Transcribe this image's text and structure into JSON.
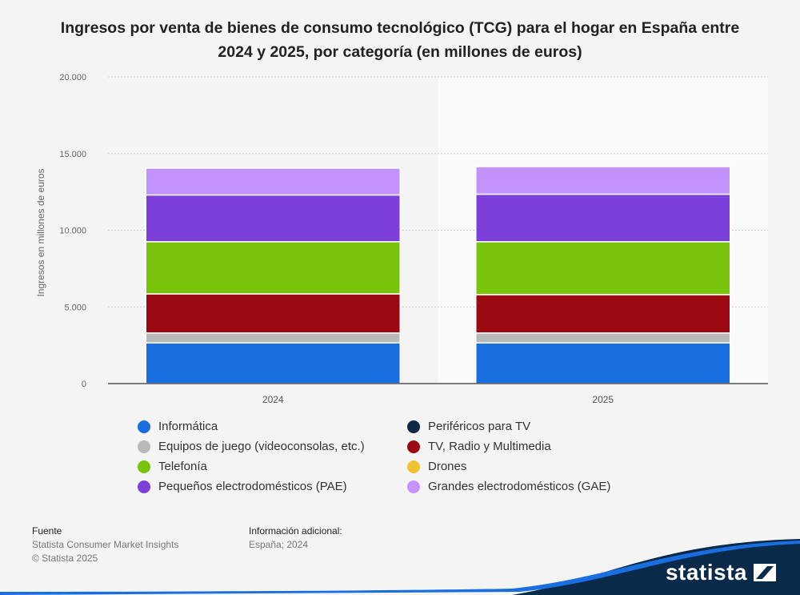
{
  "title": "Ingresos por venta de bienes de consumo tecnológico (TCG) para el hogar en España entre 2024 y 2025, por categoría (en millones de euros)",
  "chart_data": {
    "type": "bar",
    "stacked": true,
    "title": "Ingresos por venta de bienes de consumo tecnológico (TCG) para el hogar en España entre 2024 y 2025, por categoría (en millones de euros)",
    "xlabel": "",
    "ylabel": "Ingresos en millones de euros",
    "ylim": [
      0,
      20000
    ],
    "yticks": [
      0,
      5000,
      10000,
      15000,
      20000
    ],
    "ytick_labels": [
      "0",
      "5.000",
      "10.000",
      "15.000",
      "20.000"
    ],
    "categories": [
      "2024",
      "2025"
    ],
    "grid": true,
    "legend_position": "bottom",
    "series": [
      {
        "name": "Informática",
        "color": "#1a6fe0",
        "values": [
          2650,
          2650
        ]
      },
      {
        "name": "Periféricos para TV",
        "color": "#0f2844",
        "values": [
          0,
          0
        ]
      },
      {
        "name": "Equipos de juego (videoconsolas, etc.)",
        "color": "#b9b9b9",
        "values": [
          650,
          650
        ]
      },
      {
        "name": "TV, Radio y Multimedia",
        "color": "#9b0a12",
        "values": [
          2550,
          2500
        ]
      },
      {
        "name": "Telefonía",
        "color": "#78c30c",
        "values": [
          3400,
          3450
        ]
      },
      {
        "name": "Drones",
        "color": "#f1c232",
        "values": [
          0,
          0
        ]
      },
      {
        "name": "Pequeños electrodomésticos (PAE)",
        "color": "#7c3fd9",
        "values": [
          3050,
          3100
        ]
      },
      {
        "name": "Grandes electrodomésticos (GAE)",
        "color": "#c393fb",
        "values": [
          1750,
          1800
        ]
      }
    ]
  },
  "footer": {
    "source_heading": "Fuente",
    "source_lines": [
      "Statista Consumer Market Insights",
      "© Statista 2025"
    ],
    "info_heading": "Información adicional:",
    "info_line": "España; 2024"
  },
  "brand": {
    "name": "statista"
  }
}
